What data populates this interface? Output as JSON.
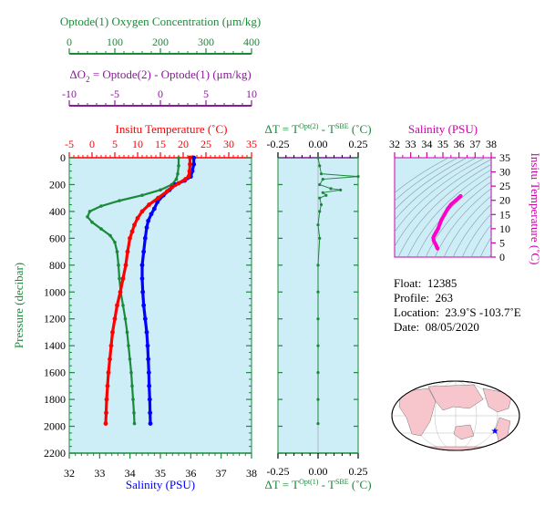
{
  "colors": {
    "oxygen": "#1a8a3a",
    "delta_o2": "#8a1a9a",
    "temperature": "#ff0000",
    "salinity": "#0000ff",
    "panel_bg": "#cdeef7",
    "dT": "#1a8a3a",
    "ts": "#ff00cc",
    "map_land": "#f7c6cc",
    "map_ocean": "#ffffff"
  },
  "labels": {
    "oxygen_title": "Optode(1) Oxygen Concentration (μm/kg)",
    "delta_o2_title_sym": "ΔO",
    "delta_o2_title_sub": "2",
    "delta_o2_title_rest": " = Optode(2) - Optode(1)   (μm/kg)",
    "temp_title": "Insitu Temperature (˚C)",
    "salinity_title": "Salinity (PSU)",
    "pressure_title": "Pressure (decibar)",
    "dT_top_title_a": "ΔT = T",
    "dT_top_title_sup": "Opt(2)",
    "dT_top_title_b": " - T",
    "dT_top_title_sup2": "SBE",
    "dT_top_title_c": " (˚C)",
    "dT_bottom_title_a": "ΔT = T",
    "dT_bottom_title_sup": "Opt(1)",
    "dT_bottom_title_b": " - T",
    "dT_bottom_title_sup2": "SBE",
    "dT_bottom_title_c": " (˚C)",
    "ts_salinity_title": "Salinity (PSU)",
    "ts_temp_title": "Insitu Temperature (˚C)"
  },
  "ticks": {
    "oxygen": [
      "0",
      "100",
      "200",
      "300",
      "400"
    ],
    "delta_o2": [
      "-10",
      "-5",
      "0",
      "5",
      "10"
    ],
    "temperature": [
      "-5",
      "0",
      "5",
      "10",
      "15",
      "20",
      "25",
      "30",
      "35"
    ],
    "salinity": [
      "32",
      "33",
      "34",
      "35",
      "36",
      "37",
      "38"
    ],
    "pressure": [
      "0",
      "200",
      "400",
      "600",
      "800",
      "1000",
      "1200",
      "1400",
      "1600",
      "1800",
      "2000",
      "2200"
    ],
    "dT": [
      "-0.25",
      "0.00",
      "0.25"
    ],
    "ts_salinity": [
      "32",
      "33",
      "34",
      "35",
      "36",
      "37",
      "38"
    ],
    "ts_temp": [
      "0",
      "5",
      "10",
      "15",
      "20",
      "25",
      "30",
      "35"
    ]
  },
  "info": {
    "float_label": "Float:",
    "float_value": "12385",
    "profile_label": "Profile:",
    "profile_value": "263",
    "location_label": "Location:",
    "location_value": "23.9˚S  -103.7˚E",
    "date_label": "Date:",
    "date_value": "08/05/2020"
  },
  "chart_data": [
    {
      "type": "line",
      "name": "profile",
      "ylabel": "Pressure (decibar)",
      "ylim": [
        0,
        2200
      ],
      "series": [
        {
          "name": "Insitu Temperature (˚C)",
          "axis": "temperature",
          "xlim": [
            -5,
            35
          ],
          "points": [
            [
              21.5,
              0
            ],
            [
              21.5,
              50
            ],
            [
              21.4,
              100
            ],
            [
              21.2,
              140
            ],
            [
              20.5,
              160
            ],
            [
              19,
              190
            ],
            [
              17.5,
              220
            ],
            [
              16.5,
              250
            ],
            [
              14.5,
              300
            ],
            [
              12.5,
              350
            ],
            [
              11,
              400
            ],
            [
              10,
              450
            ],
            [
              9.3,
              500
            ],
            [
              8.8,
              550
            ],
            [
              8.3,
              600
            ],
            [
              7.8,
              700
            ],
            [
              7.4,
              800
            ],
            [
              6.8,
              900
            ],
            [
              6.2,
              1000
            ],
            [
              5.5,
              1100
            ],
            [
              5,
              1200
            ],
            [
              4.5,
              1300
            ],
            [
              4.2,
              1400
            ],
            [
              3.9,
              1500
            ],
            [
              3.6,
              1600
            ],
            [
              3.4,
              1700
            ],
            [
              3.2,
              1800
            ],
            [
              3.1,
              1900
            ],
            [
              3.0,
              1980
            ]
          ]
        },
        {
          "name": "Salinity (PSU)",
          "axis": "salinity",
          "xlim": [
            32,
            38
          ],
          "points": [
            [
              36.1,
              0
            ],
            [
              36.1,
              50
            ],
            [
              36.05,
              100
            ],
            [
              36.0,
              140
            ],
            [
              35.8,
              170
            ],
            [
              35.5,
              200
            ],
            [
              35.3,
              240
            ],
            [
              35.1,
              280
            ],
            [
              34.9,
              330
            ],
            [
              34.8,
              380
            ],
            [
              34.7,
              420
            ],
            [
              34.6,
              470
            ],
            [
              34.55,
              520
            ],
            [
              34.5,
              600
            ],
            [
              34.45,
              700
            ],
            [
              34.4,
              800
            ],
            [
              34.4,
              900
            ],
            [
              34.42,
              1000
            ],
            [
              34.45,
              1100
            ],
            [
              34.5,
              1200
            ],
            [
              34.55,
              1300
            ],
            [
              34.58,
              1400
            ],
            [
              34.6,
              1500
            ],
            [
              34.62,
              1600
            ],
            [
              34.63,
              1700
            ],
            [
              34.65,
              1800
            ],
            [
              34.66,
              1900
            ],
            [
              34.67,
              1980
            ]
          ]
        },
        {
          "name": "Optode(1) Oxygen Concentration (μm/kg)",
          "axis": "oxygen",
          "xlim": [
            0,
            400
          ],
          "points": [
            [
              240,
              0
            ],
            [
              240,
              60
            ],
            [
              238,
              120
            ],
            [
              235,
              160
            ],
            [
              225,
              200
            ],
            [
              200,
              240
            ],
            [
              160,
              280
            ],
            [
              110,
              320
            ],
            [
              70,
              360
            ],
            [
              45,
              400
            ],
            [
              40,
              440
            ],
            [
              50,
              480
            ],
            [
              70,
              530
            ],
            [
              90,
              580
            ],
            [
              100,
              630
            ],
            [
              105,
              700
            ],
            [
              108,
              800
            ],
            [
              110,
              900
            ],
            [
              113,
              1000
            ],
            [
              118,
              1100
            ],
            [
              123,
              1200
            ],
            [
              127,
              1300
            ],
            [
              130,
              1400
            ],
            [
              133,
              1500
            ],
            [
              136,
              1600
            ],
            [
              138,
              1700
            ],
            [
              140,
              1800
            ],
            [
              142,
              1900
            ],
            [
              143,
              1980
            ]
          ]
        }
      ]
    },
    {
      "type": "line",
      "name": "delta_T",
      "ylim": [
        0,
        2200
      ],
      "xlim": [
        -0.25,
        0.25
      ],
      "series": [
        {
          "name": "ΔT = T Opt(2) - T SBE",
          "points": [
            [
              0.0,
              0
            ],
            [
              0.01,
              60
            ],
            [
              0.02,
              120
            ],
            [
              0.25,
              140
            ],
            [
              0.03,
              160
            ],
            [
              0.01,
              200
            ],
            [
              0.08,
              230
            ],
            [
              0.14,
              240
            ],
            [
              0.03,
              260
            ],
            [
              0.05,
              280
            ],
            [
              0.01,
              300
            ],
            [
              0.02,
              350
            ],
            [
              0.01,
              400
            ],
            [
              0.0,
              500
            ],
            [
              0.01,
              600
            ],
            [
              0.0,
              800
            ],
            [
              0.0,
              1000
            ],
            [
              0.0,
              1200
            ],
            [
              0.0,
              1400
            ],
            [
              0.0,
              1600
            ],
            [
              0.0,
              1800
            ],
            [
              0.0,
              1980
            ]
          ]
        }
      ]
    },
    {
      "type": "scatter",
      "name": "TS_diagram",
      "xlabel": "Salinity (PSU)",
      "ylabel": "Insitu Temperature (˚C)",
      "xlim": [
        32,
        38
      ],
      "ylim": [
        0,
        35
      ],
      "series": [
        {
          "name": "TS",
          "points": [
            [
              36.1,
              21.5
            ],
            [
              36.0,
              21
            ],
            [
              35.8,
              20
            ],
            [
              35.5,
              18.5
            ],
            [
              35.3,
              17
            ],
            [
              35.1,
              15
            ],
            [
              34.9,
              13
            ],
            [
              34.8,
              11.5
            ],
            [
              34.7,
              10
            ],
            [
              34.6,
              9
            ],
            [
              34.55,
              8.5
            ],
            [
              34.5,
              8
            ],
            [
              34.45,
              7.5
            ],
            [
              34.4,
              6.8
            ],
            [
              34.42,
              6
            ],
            [
              34.45,
              5.5
            ],
            [
              34.5,
              5
            ],
            [
              34.55,
              4.5
            ],
            [
              34.6,
              3.9
            ],
            [
              34.63,
              3.4
            ],
            [
              34.67,
              3.0
            ]
          ]
        }
      ]
    }
  ]
}
